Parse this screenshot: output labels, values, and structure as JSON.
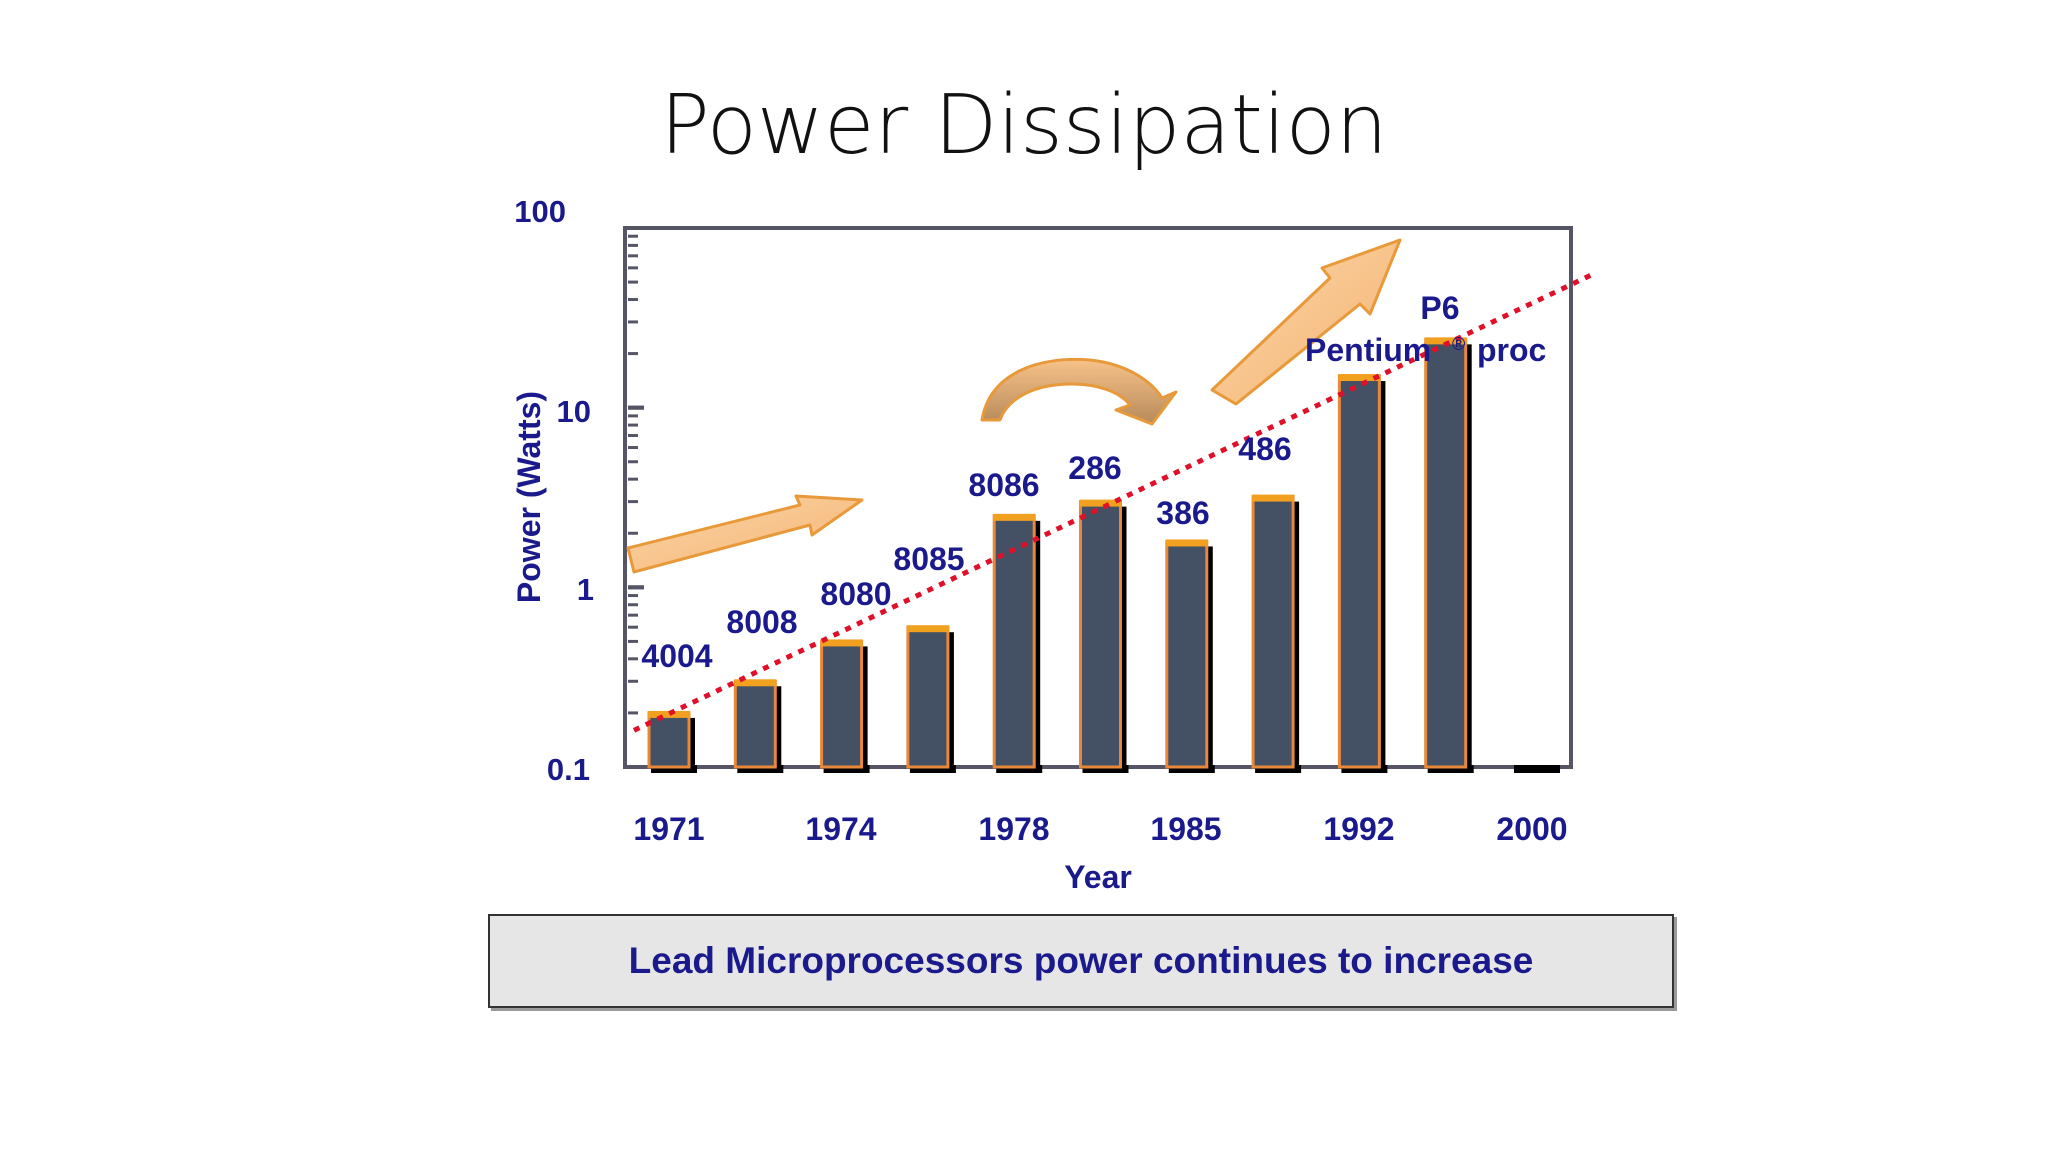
{
  "slide": {
    "title": "Power Dissipation",
    "caption": "Lead Microprocessors power continues to increase"
  },
  "colors": {
    "bar_fill": "#445064",
    "bar_edge": "#e8883a",
    "bar_cap": "#f2a020",
    "bar_shadow": "#000000",
    "text": "#1a1a8c",
    "trend": "#e0102a",
    "arrow_fill": "#f9c690",
    "arrow_stroke": "#e89a3a",
    "axis": "#555566"
  },
  "chart_data": {
    "type": "bar",
    "title": "",
    "xlabel": "Year",
    "ylabel": "Power (Watts)",
    "yscale": "log",
    "ylim": [
      0.1,
      100
    ],
    "yticks": [
      "0.1",
      "1",
      "10",
      "100"
    ],
    "xticks": [
      "1971",
      "1974",
      "1978",
      "1985",
      "1992",
      "2000"
    ],
    "bars": [
      {
        "label": "4004",
        "value": 0.2
      },
      {
        "label": "8008",
        "value": 0.3
      },
      {
        "label": "8080",
        "value": 0.5
      },
      {
        "label": "8085",
        "value": 0.6
      },
      {
        "label": "8086",
        "value": 2.5
      },
      {
        "label": "286",
        "value": 3.0
      },
      {
        "label": "386",
        "value": 1.8
      },
      {
        "label": "486",
        "value": 3.2
      },
      {
        "label": "Pentium",
        "value": 15
      },
      {
        "label": "P6",
        "value": 24
      },
      {
        "label": "",
        "value": 0.1
      }
    ],
    "annotations": {
      "pentium_label": "Pentium",
      "registered": "®",
      "proc_label": "proc",
      "p6_label": "P6"
    },
    "trend": {
      "from_value": 0.16,
      "to_value": 55
    }
  }
}
